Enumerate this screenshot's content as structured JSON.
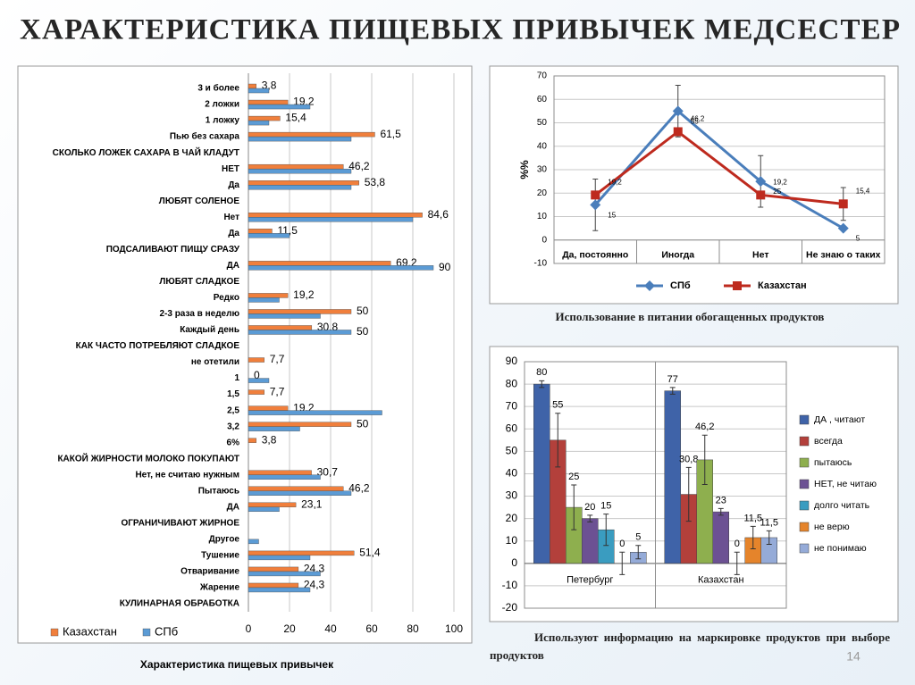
{
  "title": "ХАРАКТЕРИСТИКА ПИЩЕВЫХ ПРИВЫЧЕК МЕДСЕСТЕР",
  "page_number": 14,
  "chart_data": [
    {
      "type": "barh",
      "title": "Характеристика пищевых привычек",
      "categories": [
        "3 и более",
        "2 ложки",
        "1 ложку",
        "Пью без сахара",
        "СКОЛЬКО ЛОЖЕК САХАРА В ЧАЙ КЛАДУТ",
        "НЕТ",
        "Да",
        "ЛЮБЯТ СОЛЕНОЕ",
        "Нет",
        "Да",
        "ПОДСАЛИВАЮТ ПИЩУ СРАЗУ",
        "ДА",
        "ЛЮБЯТ СЛАДКОЕ",
        "Редко",
        "2-3 раза в неделю",
        "Каждый день",
        "КАК ЧАСТО ПОТРЕБЛЯЮТ СЛАДКОЕ",
        "не отетили",
        "1",
        "1,5",
        "2,5",
        "3,2",
        "6%",
        "КАКОЙ ЖИРНОСТИ МОЛОКО ПОКУПАЮТ",
        "Нет, не считаю нужным",
        "Пытаюсь",
        "ДА",
        "ОГРАНИЧИВАЮТ ЖИРНОЕ",
        "Другое",
        "Тушение",
        "Отваривание",
        "Жарение",
        "КУЛИНАРНАЯ ОБРАБОТКА"
      ],
      "series": [
        {
          "name": "Казахстан",
          "color": "#f07f3c",
          "values": [
            3.8,
            19.2,
            15.4,
            61.5,
            null,
            46.2,
            53.8,
            null,
            84.6,
            11.5,
            null,
            69.2,
            null,
            19.2,
            50,
            30.8,
            null,
            7.7,
            0,
            7.7,
            19.2,
            50,
            3.8,
            null,
            30.7,
            46.2,
            23.1,
            null,
            null,
            51.4,
            24.3,
            24.3,
            null
          ],
          "value_labels": [
            "3,8",
            "19,2",
            "15,4",
            "61,5",
            null,
            "46,2",
            "53,8",
            null,
            "84,6",
            "11,5",
            null,
            "69,2",
            null,
            "19,2",
            "50",
            "30,8",
            null,
            "7,7",
            "0",
            "7,7",
            "19,2",
            "50",
            "3,8",
            null,
            "30,7",
            "46,2",
            "23,1",
            null,
            null,
            "51,4",
            "24,3",
            "24,3",
            null
          ]
        },
        {
          "name": "СПб",
          "color": "#5b9bd5",
          "values": [
            10,
            30,
            10,
            50,
            null,
            50,
            50,
            null,
            80,
            20,
            null,
            90,
            null,
            15,
            35,
            50,
            null,
            null,
            10,
            null,
            65,
            25,
            null,
            null,
            35,
            50,
            15,
            null,
            5,
            30,
            35,
            30,
            null
          ],
          "value_labels": [
            null,
            null,
            null,
            null,
            null,
            null,
            null,
            null,
            null,
            null,
            null,
            "90",
            null,
            null,
            null,
            "50",
            null,
            null,
            null,
            null,
            null,
            null,
            null,
            null,
            null,
            null,
            null,
            null,
            null,
            null,
            null,
            null,
            null
          ]
        }
      ],
      "xlim": [
        0,
        100
      ],
      "xticks": [
        0,
        20,
        40,
        60,
        80,
        100
      ],
      "grid": true,
      "legend": "bottom"
    },
    {
      "type": "line",
      "title": "Использование в питании обогащенных продуктов",
      "y_label": "%%",
      "categories": [
        "Да, постоянно",
        "Иногда",
        "Нет",
        "Не знаю о таких"
      ],
      "series": [
        {
          "name": "СПб",
          "color": "#4a7ebb",
          "marker": "diamond",
          "values": [
            15,
            55,
            25,
            5
          ],
          "value_labels": [
            "15",
            "55",
            "25",
            "5"
          ],
          "errors": [
            11,
            11,
            11,
            null
          ]
        },
        {
          "name": "Казахстан",
          "color": "#be2a1e",
          "marker": "square",
          "values": [
            19.2,
            46.2,
            19.2,
            15.4
          ],
          "value_labels": [
            "19,2",
            "46,2",
            "19,2",
            "15,4"
          ],
          "errors": [
            null,
            null,
            null,
            7
          ]
        }
      ],
      "ylim": [
        -10,
        70
      ],
      "yticks": [
        -10,
        0,
        10,
        20,
        30,
        40,
        50,
        60,
        70
      ],
      "grid": true,
      "legend": "bottom"
    },
    {
      "type": "bar",
      "title": "Используют информацию на маркировке продуктов при выборе продуктов",
      "categories": [
        "Петербург",
        "Казахстан"
      ],
      "series": [
        {
          "name": "ДА , читают",
          "color": "#3f63a8",
          "values": [
            80,
            77
          ],
          "value_labels": [
            "80",
            "77"
          ],
          "errors": [
            1.5,
            1.5
          ]
        },
        {
          "name": "всегда",
          "color": "#b3403b",
          "values": [
            55,
            30.8
          ],
          "value_labels": [
            "55",
            "30,8"
          ],
          "errors": [
            12,
            12
          ]
        },
        {
          "name": "пытаюсь",
          "color": "#8eaf4e",
          "values": [
            25,
            46.2
          ],
          "value_labels": [
            "25",
            "46,2"
          ],
          "errors": [
            10,
            11
          ]
        },
        {
          "name": "НЕТ, не читаю",
          "color": "#6c5193",
          "values": [
            20,
            23
          ],
          "value_labels": [
            "20",
            "23"
          ],
          "errors": [
            1.5,
            1.5
          ]
        },
        {
          "name": "долго читать",
          "color": "#3a9cc0",
          "values": [
            15,
            0
          ],
          "value_labels": [
            "15",
            "0"
          ],
          "errors": [
            7,
            5
          ]
        },
        {
          "name": "не верю",
          "color": "#e5842b",
          "values": [
            0,
            11.5
          ],
          "value_labels": [
            "0",
            "11,5"
          ],
          "errors": [
            5,
            5
          ]
        },
        {
          "name": "не понимаю",
          "color": "#95abd8",
          "values": [
            5,
            11.5
          ],
          "value_labels": [
            "5",
            "11,5"
          ],
          "errors": [
            3,
            3
          ]
        }
      ],
      "ylim": [
        -20,
        90
      ],
      "yticks": [
        -20,
        -10,
        0,
        10,
        20,
        30,
        40,
        50,
        60,
        70,
        80,
        90
      ],
      "grid": true,
      "legend": "right"
    }
  ]
}
